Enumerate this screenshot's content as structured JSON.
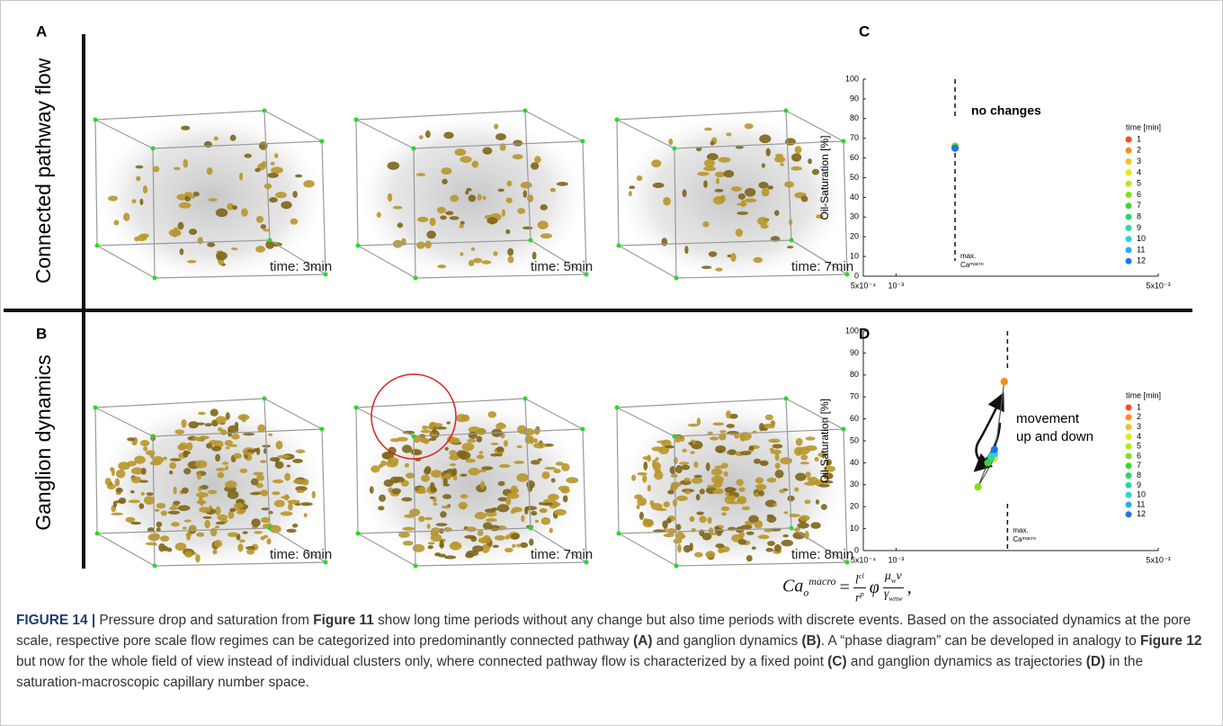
{
  "panel_labels": [
    "A",
    "B",
    "C",
    "D"
  ],
  "row_labels": [
    "Connected pathway flow",
    "Ganglion dynamics"
  ],
  "time_labels": [
    [
      "time: 3min",
      "time: 5min",
      "time: 7min"
    ],
    [
      "time: 6min",
      "time: 7min",
      "time: 8min"
    ]
  ],
  "chart_data": [
    {
      "type": "scatter",
      "y_label": "Oil-Saturation [%]",
      "xlim": [
        0.0005,
        0.005
      ],
      "xticks": [
        {
          "value": 0.0005,
          "label": "5x10⁻⁴"
        },
        {
          "value": 0.001,
          "label": "10⁻³"
        },
        {
          "value": 0.005,
          "label": "5x10⁻³"
        }
      ],
      "ylim": [
        0,
        100
      ],
      "yticks": [
        0,
        10,
        20,
        30,
        40,
        50,
        60,
        70,
        80,
        90,
        100
      ],
      "legend_title": "time [min]",
      "legend": "right",
      "trajectory": false,
      "threshold": {
        "x": 0.0019,
        "label_1": "max.",
        "label_2": "Caᵐᵃᶜʳᵒ"
      },
      "annotation": [
        "no changes"
      ],
      "series": [
        {
          "name": "1",
          "color": "#ff4a1f",
          "x": [
            0.0019
          ],
          "values": [
            66
          ]
        },
        {
          "name": "2",
          "color": "#ff8a1e",
          "x": [
            0.0019
          ],
          "values": [
            66
          ]
        },
        {
          "name": "3",
          "color": "#f4c21c",
          "x": [
            0.0019
          ],
          "values": [
            66
          ]
        },
        {
          "name": "4",
          "color": "#e4e81a",
          "x": [
            0.0019
          ],
          "values": [
            66
          ]
        },
        {
          "name": "5",
          "color": "#b8e81a",
          "x": [
            0.0019
          ],
          "values": [
            66
          ]
        },
        {
          "name": "6",
          "color": "#80e21c",
          "x": [
            0.0019
          ],
          "values": [
            66
          ]
        },
        {
          "name": "7",
          "color": "#3fd62a",
          "x": [
            0.0019
          ],
          "values": [
            65
          ]
        },
        {
          "name": "8",
          "color": "#2fd46c",
          "x": [
            0.0019
          ],
          "values": [
            65
          ]
        },
        {
          "name": "9",
          "color": "#2ed6aa",
          "x": [
            0.0019
          ],
          "values": [
            65
          ]
        },
        {
          "name": "10",
          "color": "#2ad4d8",
          "x": [
            0.0019
          ],
          "values": [
            65
          ]
        },
        {
          "name": "11",
          "color": "#1fb2ee",
          "x": [
            0.0019
          ],
          "values": [
            65
          ]
        },
        {
          "name": "12",
          "color": "#1f74e6",
          "x": [
            0.0019
          ],
          "values": [
            65
          ]
        }
      ]
    },
    {
      "type": "scatter",
      "y_label": "Oil-Saturation [%]",
      "xlim": [
        0.0005,
        0.005
      ],
      "xticks": [
        {
          "value": 0.0005,
          "label": "5x10⁻⁴"
        },
        {
          "value": 0.001,
          "label": "10⁻³"
        },
        {
          "value": 0.005,
          "label": "5x10⁻³"
        }
      ],
      "ylim": [
        0,
        100
      ],
      "yticks": [
        0,
        10,
        20,
        30,
        40,
        50,
        60,
        70,
        80,
        90,
        100
      ],
      "legend_title": "time [min]",
      "legend": "right",
      "trajectory": true,
      "threshold": {
        "x": 0.0027,
        "label_1": "max.",
        "label_2": "Caᵐᵃᶜʳᵒ"
      },
      "annotation": [
        "movement",
        "up and down"
      ],
      "series": [
        {
          "name": "1",
          "color": "#ff4a1f",
          "x": [
            0.00265
          ],
          "values": [
            77
          ]
        },
        {
          "name": "2",
          "color": "#ff8a1e",
          "x": [
            0.00265
          ],
          "values": [
            77
          ]
        },
        {
          "name": "3",
          "color": "#f4c21c",
          "x": [
            0.0025
          ],
          "values": [
            42
          ]
        },
        {
          "name": "4",
          "color": "#e4e81a",
          "x": [
            0.0025
          ],
          "values": [
            42
          ]
        },
        {
          "name": "5",
          "color": "#b8e81a",
          "x": [
            0.00225
          ],
          "values": [
            29
          ]
        },
        {
          "name": "6",
          "color": "#80e21c",
          "x": [
            0.00225
          ],
          "values": [
            29
          ]
        },
        {
          "name": "7",
          "color": "#3fd62a",
          "x": [
            0.0024
          ],
          "values": [
            40
          ]
        },
        {
          "name": "8",
          "color": "#2fd46c",
          "x": [
            0.00245
          ],
          "values": [
            42
          ]
        },
        {
          "name": "9",
          "color": "#2ed6aa",
          "x": [
            0.00245
          ],
          "values": [
            43
          ]
        },
        {
          "name": "10",
          "color": "#2ad4d8",
          "x": [
            0.0025
          ],
          "values": [
            44
          ]
        },
        {
          "name": "11",
          "color": "#1fb2ee",
          "x": [
            0.0025
          ],
          "values": [
            46
          ]
        },
        {
          "name": "12",
          "color": "#1f74e6",
          "x": [
            0.0025
          ],
          "values": [
            46
          ]
        }
      ]
    }
  ],
  "equation": {
    "lhs": "Ca",
    "lhs_sub": "o",
    "lhs_sup": "macro",
    "eq": "=",
    "f1_num": "l",
    "f1_num_sup": "cl",
    "f1_den": "r",
    "f1_den_sup": "p",
    "phi": "φ",
    "f2_num": "μ",
    "f2_num_sub": "w",
    "f2_num_rest": "v",
    "f2_den": "γ",
    "f2_den_sub": "wnw",
    "end": ","
  },
  "caption": [
    {
      "text": "FIGURE 14 |",
      "bold": true
    },
    {
      "text": " Pressure drop and saturation from ",
      "bold": false
    },
    {
      "text": "Figure 11",
      "bold": true
    },
    {
      "text": " show long time periods without any change but also time periods with discrete events. Based on the associated dynamics at the pore scale, respective pore scale flow regimes can be categorized into predominantly connected pathway ",
      "bold": false
    },
    {
      "text": "(A)",
      "bold": true
    },
    {
      "text": " and ganglion dynamics ",
      "bold": false
    },
    {
      "text": "(B)",
      "bold": true
    },
    {
      "text": ". A “phase diagram” can be developed in analogy to ",
      "bold": false
    },
    {
      "text": "Figure 12",
      "bold": true
    },
    {
      "text": " but now for the whole field of view instead of individual clusters only, where connected pathway flow is characterized by a fixed point ",
      "bold": false
    },
    {
      "text": "(C)",
      "bold": true
    },
    {
      "text": " and ganglion dynamics as trajectories ",
      "bold": false
    },
    {
      "text": "(D)",
      "bold": true
    },
    {
      "text": " in the saturation-macroscopic capillary number space.",
      "bold": false
    }
  ]
}
